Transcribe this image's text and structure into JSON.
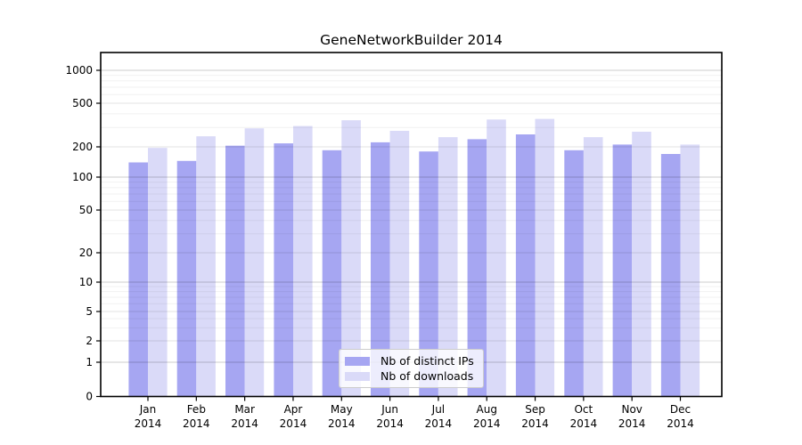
{
  "title": "GeneNetworkBuilder 2014",
  "chart_data": {
    "type": "bar",
    "categories": [
      "Jan",
      "Feb",
      "Mar",
      "Apr",
      "May",
      "Jun",
      "Jul",
      "Aug",
      "Sep",
      "Oct",
      "Nov",
      "Dec"
    ],
    "category_year": "2014",
    "series": [
      {
        "name": "Nb of distinct IPs",
        "color": "#a6a6f2",
        "values": [
          140,
          145,
          205,
          215,
          185,
          220,
          180,
          235,
          260,
          185,
          210,
          170
        ]
      },
      {
        "name": "Nb of downloads",
        "color": "#dadaf8",
        "values": [
          195,
          250,
          295,
          310,
          350,
          280,
          245,
          355,
          360,
          245,
          275,
          210
        ]
      }
    ],
    "yticks": [
      0,
      1,
      2,
      5,
      10,
      20,
      50,
      100,
      200,
      500,
      1000
    ],
    "ylim": [
      0,
      1450
    ],
    "yscale": "log-like with zero baseline",
    "grid": true,
    "gridlines_over_bars": true,
    "legend_position": "lower center",
    "xlabel": "",
    "ylabel": ""
  }
}
